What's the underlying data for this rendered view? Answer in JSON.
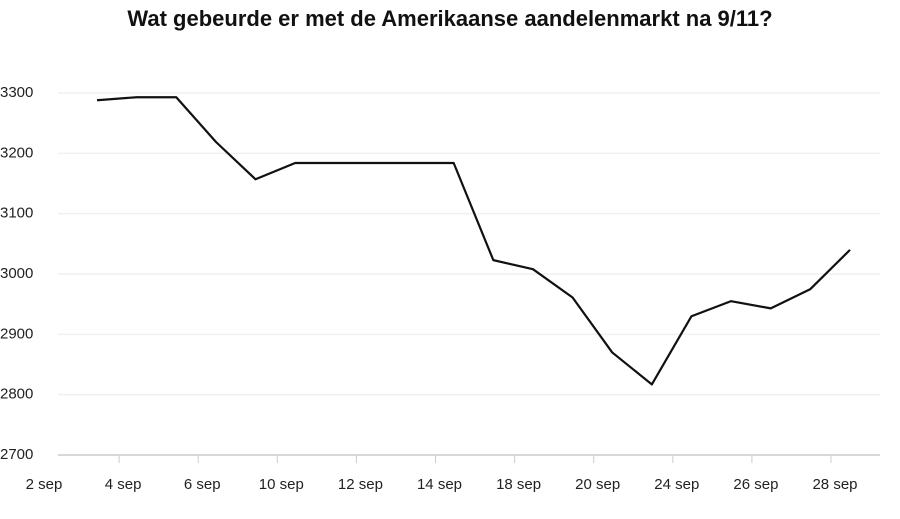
{
  "chart_data": {
    "type": "line",
    "title": "Wat gebeurde er met de Amerikaanse aandelenmarkt na 9/11?",
    "x_tick_labels": [
      "2 sep",
      "4 sep",
      "6 sep",
      "10 sep",
      "12 sep",
      "14 sep",
      "18 sep",
      "20 sep",
      "24 sep",
      "26 sep",
      "28 sep"
    ],
    "values": [
      3288,
      3293,
      3293,
      3219,
      3157,
      3184,
      3184,
      3184,
      3184,
      3184,
      3023,
      3008,
      2961,
      2870,
      2817,
      2930,
      2955,
      2943,
      2975,
      3040
    ],
    "color": "#111111",
    "ylim": [
      2700,
      3300
    ],
    "yticks": [
      2700,
      2800,
      2900,
      3000,
      3100,
      3200,
      3300
    ],
    "grid": true
  }
}
